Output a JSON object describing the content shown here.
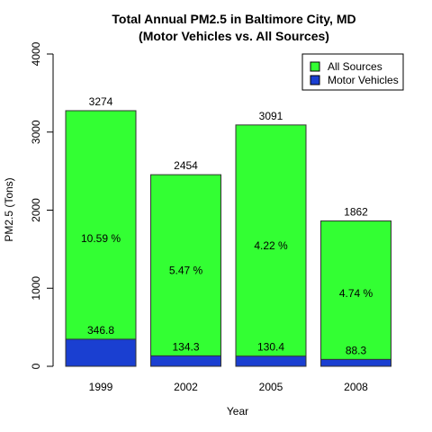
{
  "chart_data": {
    "type": "bar",
    "title": "Total Annual PM2.5 in Baltimore City, MD",
    "subtitle": "(Motor Vehicles vs. All Sources)",
    "xlabel": "Year",
    "ylabel": "PM2.5 (Tons)",
    "ylim": [
      0,
      4000
    ],
    "yticks": [
      "0",
      "1000",
      "2000",
      "3000",
      "4000"
    ],
    "categories": [
      "1999",
      "2002",
      "2005",
      "2008"
    ],
    "legend_position": "top-right",
    "series": [
      {
        "name": "All Sources",
        "color": "#33ff33",
        "values": [
          3274,
          2454,
          3091,
          1862
        ],
        "labels": [
          "3274",
          "2454",
          "3091",
          "1862"
        ]
      },
      {
        "name": "Motor Vehicles",
        "color": "#1a3fd1",
        "values": [
          346.8,
          134.3,
          130.4,
          88.3
        ],
        "labels": [
          "346.8",
          "134.3",
          "130.4",
          "88.3"
        ]
      }
    ],
    "percent_labels": [
      "10.59 %",
      "5.47 %",
      "4.22 %",
      "4.74 %"
    ]
  }
}
